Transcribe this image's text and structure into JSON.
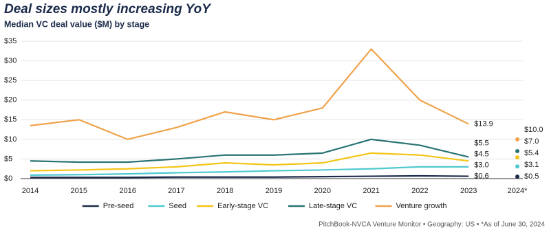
{
  "chart_data": {
    "type": "line",
    "title": "Deal sizes mostly increasing YoY",
    "subtitle": "Median VC deal value ($M) by stage",
    "source": "PitchBook-NVCA Venture Monitor  •  Geography: US  •  *As of June 30, 2024",
    "categories": [
      "2014",
      "2015",
      "2016",
      "2017",
      "2018",
      "2019",
      "2020",
      "2021",
      "2022",
      "2023",
      "2024*"
    ],
    "ylim": [
      0,
      35
    ],
    "yticks": [
      {
        "value": 0,
        "label": "$0"
      },
      {
        "value": 5,
        "label": "$5"
      },
      {
        "value": 10,
        "label": "$10"
      },
      {
        "value": 15,
        "label": "$15"
      },
      {
        "value": 20,
        "label": "$20"
      },
      {
        "value": 25,
        "label": "$25"
      },
      {
        "value": 30,
        "label": "$30"
      },
      {
        "value": 35,
        "label": "$35"
      }
    ],
    "grid": true,
    "legend": "bottom",
    "series": [
      {
        "name": "Pre-seed",
        "color": "#1b2a4a",
        "values": [
          0.3,
          0.3,
          0.3,
          0.4,
          0.4,
          0.4,
          0.5,
          0.6,
          0.7,
          0.6,
          0.5
        ],
        "value_labels": [
          null,
          null,
          null,
          null,
          null,
          null,
          null,
          null,
          null,
          "$0.6",
          "$0.5"
        ]
      },
      {
        "name": "Seed",
        "color": "#4fc9d0",
        "values": [
          0.9,
          1.0,
          1.2,
          1.5,
          1.7,
          2.0,
          2.2,
          2.5,
          3.0,
          3.0,
          3.1
        ],
        "value_labels": [
          null,
          null,
          null,
          null,
          null,
          null,
          null,
          null,
          null,
          "$3.0",
          "$3.1"
        ]
      },
      {
        "name": "Early-stage VC",
        "color": "#f3c516",
        "values": [
          2.0,
          2.2,
          2.5,
          3.0,
          4.0,
          3.5,
          4.0,
          6.5,
          6.0,
          4.5,
          5.4
        ],
        "value_labels": [
          null,
          null,
          null,
          null,
          null,
          null,
          null,
          null,
          null,
          "$4.5",
          "$5.4"
        ]
      },
      {
        "name": "Late-stage VC",
        "color": "#2a7373",
        "values": [
          4.5,
          4.2,
          4.2,
          5.0,
          6.0,
          6.0,
          6.5,
          10.0,
          8.5,
          5.5,
          7.0
        ],
        "value_labels": [
          null,
          null,
          null,
          null,
          null,
          null,
          null,
          null,
          null,
          "$5.5",
          "$7.0"
        ]
      },
      {
        "name": "Venture growth",
        "color": "#f0a24b",
        "values": [
          13.5,
          15.0,
          10.0,
          13.0,
          17.0,
          15.0,
          18.0,
          33.0,
          20.0,
          13.9,
          10.0
        ],
        "value_labels": [
          null,
          null,
          null,
          null,
          null,
          null,
          null,
          null,
          null,
          "$13.9",
          "$10.0"
        ]
      }
    ]
  }
}
